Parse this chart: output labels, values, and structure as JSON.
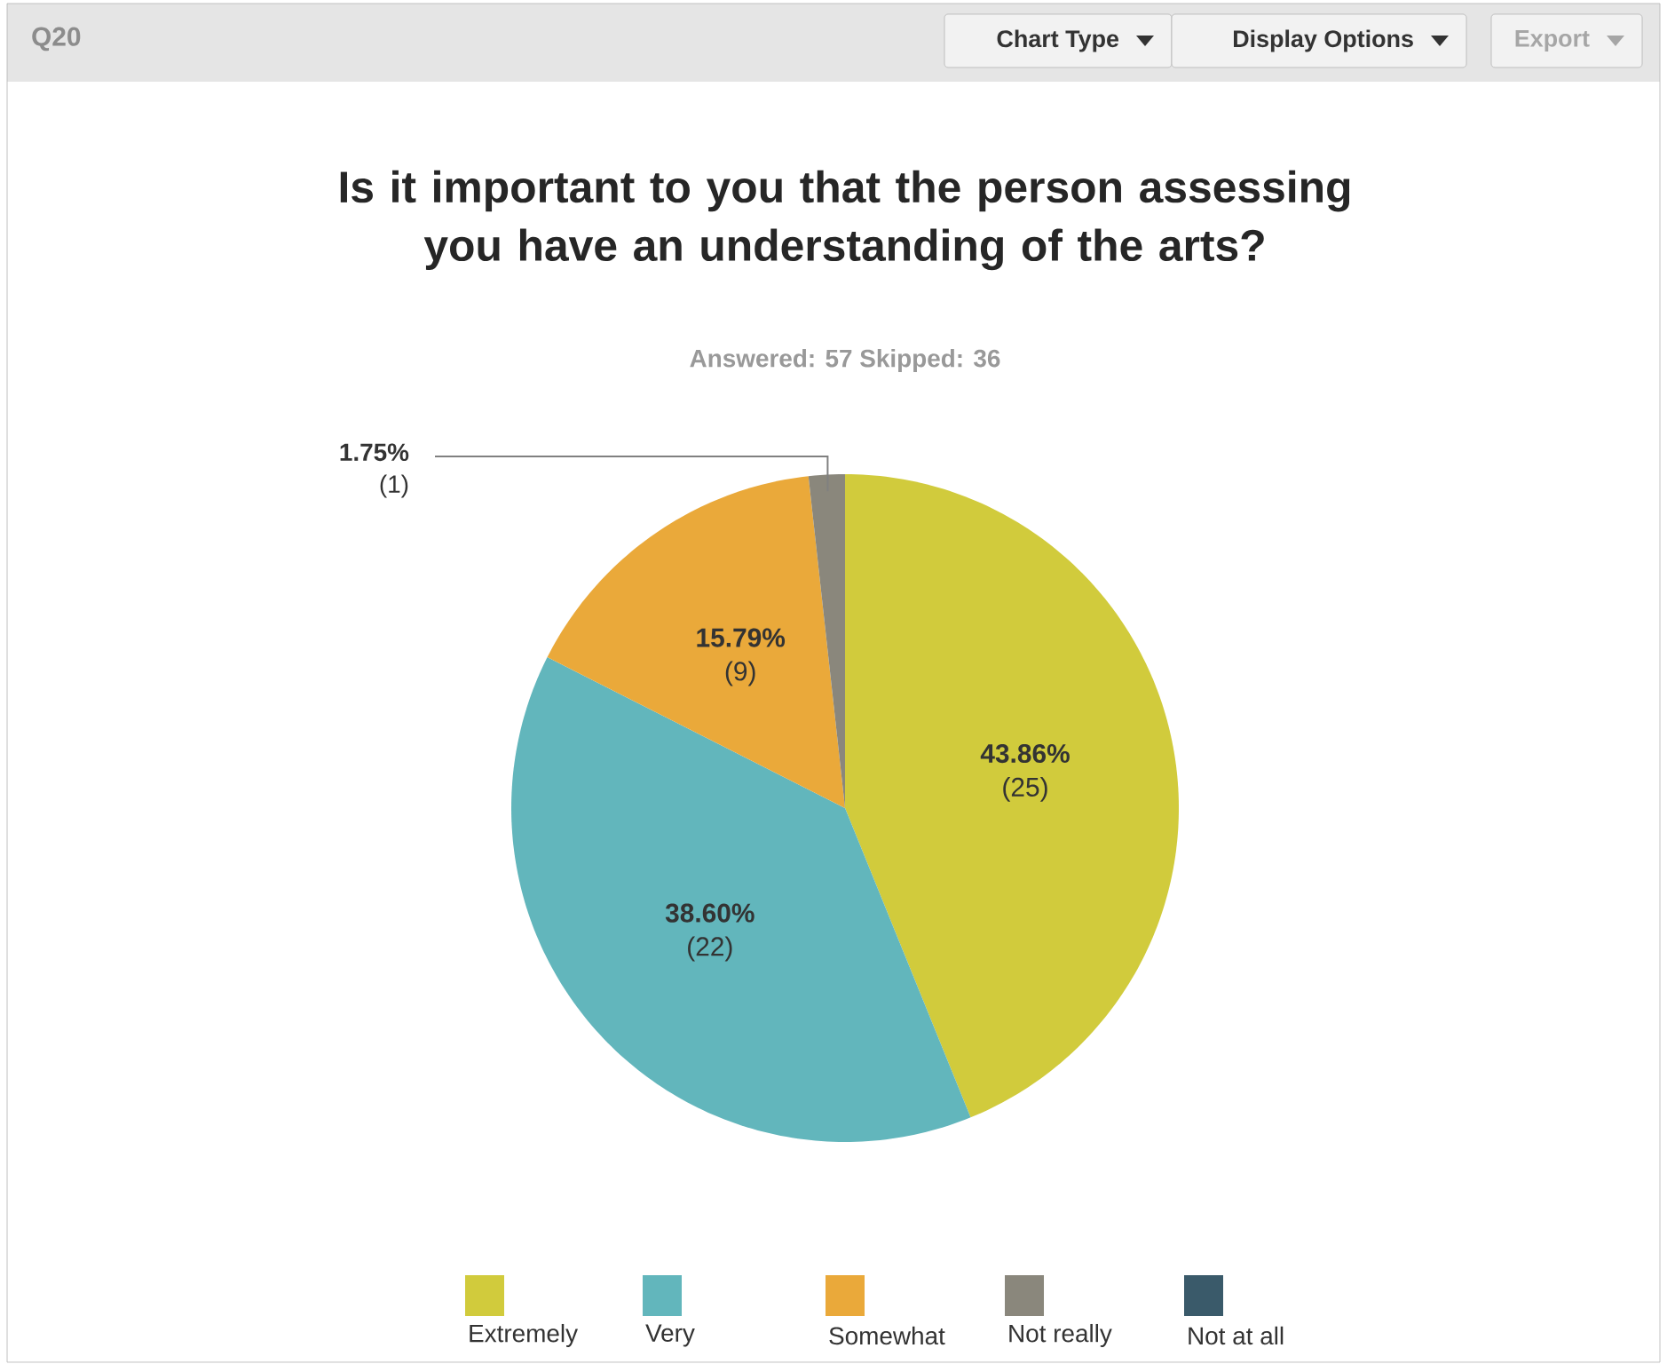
{
  "chart_data": {
    "type": "pie",
    "title": "Is it important to you that the person assessing you have an understanding of the arts?",
    "subtitle": "Answered: 57    Skipped: 36",
    "categories": [
      "Extremely",
      "Very",
      "Somewhat",
      "Not really",
      "Not at all"
    ],
    "values": [
      43.86,
      38.6,
      15.79,
      1.75,
      0
    ],
    "colors": [
      "#d1cb3c",
      "#62b6bc",
      "#eaa93a",
      "#8a877c",
      "#3a5a6a"
    ],
    "value_labels": [
      "43.86%",
      "38.60%",
      "15.79%",
      "1.75%",
      null
    ],
    "annotations": [
      "Q20",
      "Chart Type",
      "Display Options",
      "Export",
      {
        "text": "(25)",
        "x": "Extremely"
      },
      {
        "text": "(22)",
        "x": "Very"
      },
      {
        "text": "(9)",
        "x": "Somewhat"
      },
      {
        "text": "(1)",
        "x": "Not really"
      }
    ],
    "legend": "bottom"
  }
}
